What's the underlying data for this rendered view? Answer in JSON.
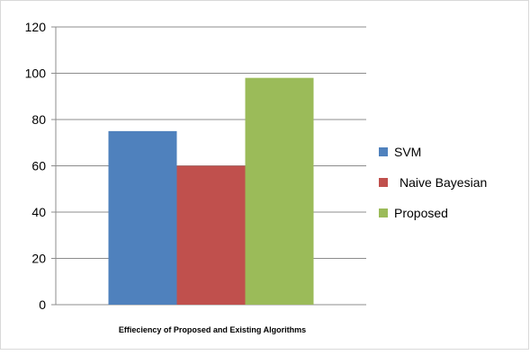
{
  "chart_data": {
    "type": "bar",
    "categories": [
      "Effieciency of Proposed and Existing Algorithms"
    ],
    "series": [
      {
        "name": "SVM",
        "values": [
          75
        ],
        "color": "#4f81bd"
      },
      {
        "name": "Naive Bayesian",
        "values": [
          60
        ],
        "color": "#c0504d"
      },
      {
        "name": "Proposed",
        "values": [
          98
        ],
        "color": "#9bbb59"
      }
    ],
    "title": "",
    "xlabel": "",
    "ylabel": "",
    "ylim": [
      0,
      120
    ],
    "yticks": [
      "0",
      "20",
      "40",
      "60",
      "80",
      "100",
      "120"
    ],
    "grid": true,
    "legend_position": "right"
  }
}
